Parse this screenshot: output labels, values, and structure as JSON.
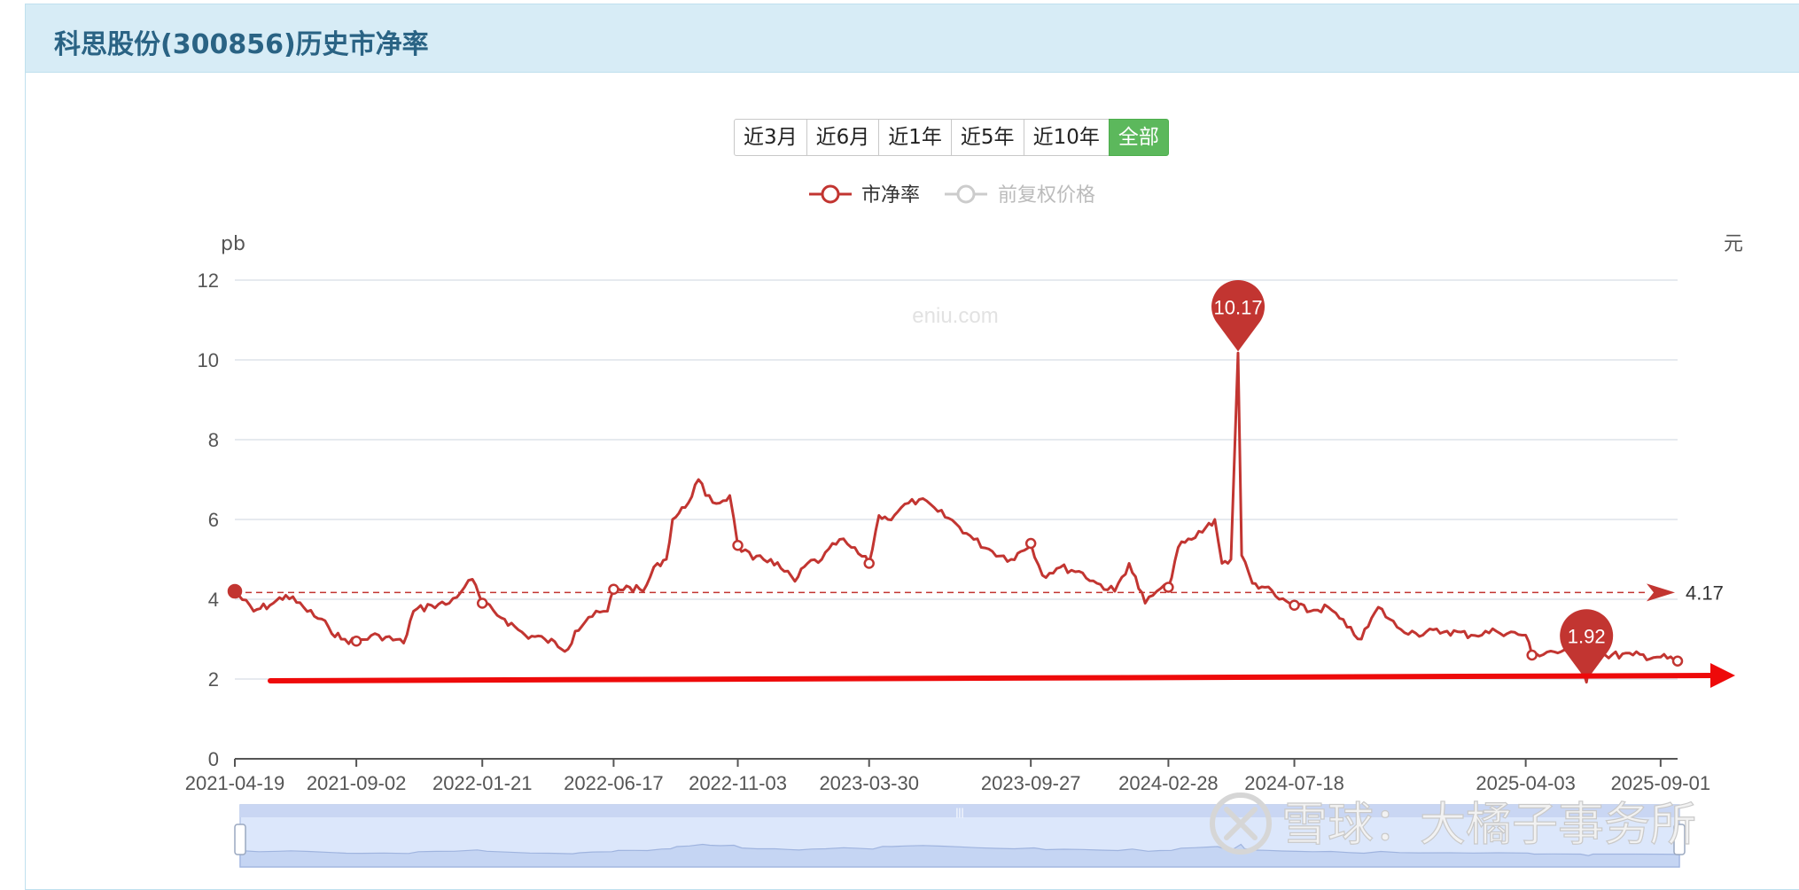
{
  "header": {
    "title": "科思股份(300856)历史市净率"
  },
  "range_buttons": [
    {
      "label": "近3月",
      "active": false
    },
    {
      "label": "近6月",
      "active": false
    },
    {
      "label": "近1年",
      "active": false
    },
    {
      "label": "近5年",
      "active": false
    },
    {
      "label": "近10年",
      "active": false
    },
    {
      "label": "全部",
      "active": true
    }
  ],
  "watermark": "eniu.com",
  "overlay_watermark": "雪球：大橘子事务所",
  "chart_data": {
    "type": "line",
    "legend": [
      {
        "name": "市净率",
        "color": "#c23531",
        "active": true
      },
      {
        "name": "前复权价格",
        "color": "#cccccc",
        "active": false
      }
    ],
    "legend_position": "top-center",
    "y_left_label": "pb",
    "y_right_label": "元",
    "y_range": [
      0,
      12
    ],
    "y_ticks": [
      0,
      2,
      4,
      6,
      8,
      10,
      12
    ],
    "x_ticks": [
      "2021-04-19",
      "2021-09-02",
      "2022-01-21",
      "2022-06-17",
      "2022-11-03",
      "2023-03-30",
      "2023-09-27",
      "2024-02-28",
      "2024-07-18",
      "2025-04-03",
      "2025-09-01"
    ],
    "grid": true,
    "mean_line": {
      "value": 4.17,
      "label": "4.17"
    },
    "max_point": {
      "value": 10.17,
      "label": "10.17",
      "date": "2024-05-16"
    },
    "min_point": {
      "value": 1.92,
      "label": "1.92",
      "date": "2025-06-10"
    },
    "series_name": "市净率",
    "points": [
      [
        "2021-04-19",
        4.2
      ],
      [
        "2021-05-10",
        3.7
      ],
      [
        "2021-06-01",
        3.9
      ],
      [
        "2021-06-15",
        4.1
      ],
      [
        "2021-07-05",
        3.8
      ],
      [
        "2021-08-02",
        3.3
      ],
      [
        "2021-08-16",
        3.0
      ],
      [
        "2021-09-02",
        2.95
      ],
      [
        "2021-09-27",
        3.1
      ],
      [
        "2021-10-25",
        2.9
      ],
      [
        "2021-11-05",
        3.7
      ],
      [
        "2021-11-25",
        3.85
      ],
      [
        "2021-12-15",
        3.9
      ],
      [
        "2022-01-01",
        4.3
      ],
      [
        "2022-01-10",
        4.5
      ],
      [
        "2022-01-21",
        3.9
      ],
      [
        "2022-02-15",
        3.5
      ],
      [
        "2022-03-10",
        3.1
      ],
      [
        "2022-04-01",
        3.0
      ],
      [
        "2022-04-27",
        2.75
      ],
      [
        "2022-05-05",
        3.2
      ],
      [
        "2022-05-20",
        3.55
      ],
      [
        "2022-06-10",
        3.7
      ],
      [
        "2022-06-17",
        4.25
      ],
      [
        "2022-07-05",
        4.3
      ],
      [
        "2022-07-20",
        4.2
      ],
      [
        "2022-08-05",
        4.9
      ],
      [
        "2022-08-15",
        5.0
      ],
      [
        "2022-08-22",
        6.0
      ],
      [
        "2022-09-05",
        6.3
      ],
      [
        "2022-09-20",
        7.0
      ],
      [
        "2022-09-28",
        6.6
      ],
      [
        "2022-10-10",
        6.4
      ],
      [
        "2022-10-25",
        6.6
      ],
      [
        "2022-11-03",
        5.35
      ],
      [
        "2022-11-20",
        5.0
      ],
      [
        "2022-12-10",
        5.0
      ],
      [
        "2022-12-25",
        4.7
      ],
      [
        "2023-01-06",
        4.45
      ],
      [
        "2023-01-20",
        4.9
      ],
      [
        "2023-02-05",
        5.0
      ],
      [
        "2023-02-25",
        5.5
      ],
      [
        "2023-03-10",
        5.3
      ],
      [
        "2023-03-30",
        4.9
      ],
      [
        "2023-04-10",
        6.1
      ],
      [
        "2023-04-20",
        6.0
      ],
      [
        "2023-05-05",
        6.3
      ],
      [
        "2023-05-25",
        6.5
      ],
      [
        "2023-06-15",
        6.2
      ],
      [
        "2023-07-05",
        5.9
      ],
      [
        "2023-07-25",
        5.5
      ],
      [
        "2023-08-15",
        5.2
      ],
      [
        "2023-09-05",
        5.0
      ],
      [
        "2023-09-27",
        5.4
      ],
      [
        "2023-10-10",
        4.6
      ],
      [
        "2023-10-30",
        4.8
      ],
      [
        "2023-11-20",
        4.7
      ],
      [
        "2023-12-10",
        4.4
      ],
      [
        "2023-12-30",
        4.2
      ],
      [
        "2024-01-15",
        4.9
      ],
      [
        "2024-02-02",
        3.9
      ],
      [
        "2024-02-15",
        4.2
      ],
      [
        "2024-02-28",
        4.3
      ],
      [
        "2024-03-10",
        5.3
      ],
      [
        "2024-03-25",
        5.5
      ],
      [
        "2024-04-10",
        5.8
      ],
      [
        "2024-04-20",
        6.0
      ],
      [
        "2024-04-28",
        4.9
      ],
      [
        "2024-05-08",
        5.0
      ],
      [
        "2024-05-16",
        10.17
      ],
      [
        "2024-05-20",
        5.1
      ],
      [
        "2024-06-01",
        4.4
      ],
      [
        "2024-06-15",
        4.3
      ],
      [
        "2024-07-01",
        4.0
      ],
      [
        "2024-07-18",
        3.85
      ],
      [
        "2024-08-05",
        3.7
      ],
      [
        "2024-08-25",
        3.8
      ],
      [
        "2024-09-15",
        3.3
      ],
      [
        "2024-10-01",
        3.0
      ],
      [
        "2024-10-20",
        3.8
      ],
      [
        "2024-11-10",
        3.3
      ],
      [
        "2024-12-01",
        3.15
      ],
      [
        "2025-01-05",
        3.2
      ],
      [
        "2025-02-01",
        3.1
      ],
      [
        "2025-03-01",
        3.2
      ],
      [
        "2025-04-03",
        3.1
      ],
      [
        "2025-04-10",
        2.6
      ],
      [
        "2025-05-01",
        2.7
      ],
      [
        "2025-06-01",
        2.6
      ],
      [
        "2025-06-10",
        1.92
      ],
      [
        "2025-06-15",
        2.6
      ],
      [
        "2025-07-01",
        2.6
      ],
      [
        "2025-08-01",
        2.6
      ],
      [
        "2025-09-01",
        2.55
      ],
      [
        "2025-09-20",
        2.45
      ]
    ]
  },
  "brush": {
    "range": [
      0,
      1
    ]
  }
}
